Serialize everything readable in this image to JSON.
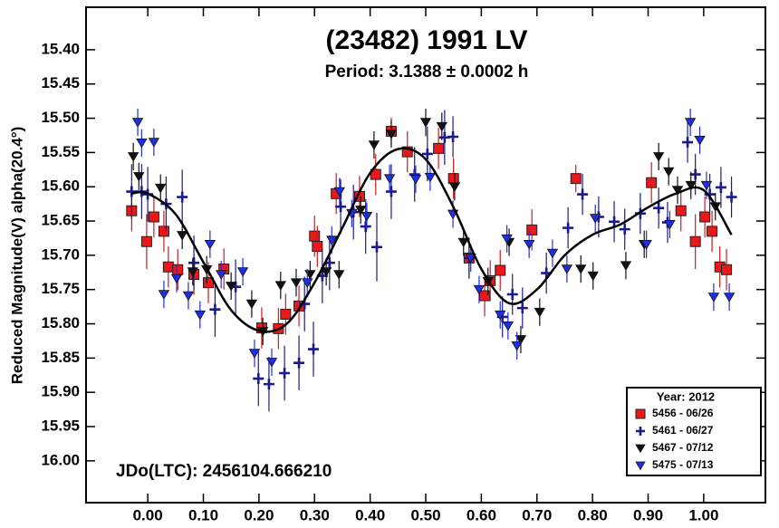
{
  "chart_data": {
    "type": "scatter",
    "title": "(23482) 1991 LV",
    "subtitle": "Period: 3.1388 ± 0.0002 h",
    "y_label": "Reduced Magnitude(V) alpha(20.4°)",
    "annotation": "JDo(LTC): 2456104.666210",
    "legend_title": "Year: 2012",
    "legend_position": "lower-right",
    "xlim": [
      -0.111,
      1.111
    ],
    "ylim": [
      15.338,
      16.061
    ],
    "y_inverted": true,
    "xticks": [
      {
        "value": 0,
        "label": "0.00"
      },
      {
        "value": 0.1,
        "label": "0.10"
      },
      {
        "value": 0.2,
        "label": "0.20"
      },
      {
        "value": 0.3,
        "label": "0.30"
      },
      {
        "value": 0.4,
        "label": "0.40"
      },
      {
        "value": 0.5,
        "label": "0.50"
      },
      {
        "value": 0.6,
        "label": "0.60"
      },
      {
        "value": 0.7,
        "label": "0.70"
      },
      {
        "value": 0.8,
        "label": "0.80"
      },
      {
        "value": 0.9,
        "label": "0.90"
      },
      {
        "value": 1,
        "label": "1.00"
      }
    ],
    "yticks": [
      {
        "value": 15.4,
        "label": "15.40"
      },
      {
        "value": 15.45,
        "label": "15.45"
      },
      {
        "value": 15.5,
        "label": "15.50"
      },
      {
        "value": 15.55,
        "label": "15.55"
      },
      {
        "value": 15.6,
        "label": "15.60"
      },
      {
        "value": 15.65,
        "label": "15.65"
      },
      {
        "value": 15.7,
        "label": "15.70"
      },
      {
        "value": 15.75,
        "label": "15.75"
      },
      {
        "value": 15.8,
        "label": "15.80"
      },
      {
        "value": 15.85,
        "label": "15.85"
      },
      {
        "value": 15.9,
        "label": "15.90"
      },
      {
        "value": 15.95,
        "label": "15.95"
      },
      {
        "value": 16,
        "label": "16.00"
      }
    ],
    "series": [
      {
        "name": "5456 - 06/26",
        "marker": "square",
        "color": "#e8181b",
        "error_color": "#d01a1a",
        "x": [
          -0.029,
          0.011,
          -0.002,
          0.029,
          0.037,
          0.054,
          0.083,
          0.109,
          0.137,
          0.205,
          0.235,
          0.248,
          0.272,
          0.3,
          0.305,
          0.339,
          0.381,
          0.41,
          0.438,
          0.467,
          0.523,
          0.55,
          0.578,
          0.606,
          0.616,
          0.634,
          0.691,
          0.77,
          0.906,
          0.959,
          0.985,
          1.002,
          1.015,
          1.029,
          1.041
        ],
        "values": [
          15.635,
          15.644,
          15.68,
          15.665,
          15.717,
          15.721,
          15.728,
          15.74,
          15.72,
          15.806,
          15.807,
          15.786,
          15.774,
          15.672,
          15.687,
          15.61,
          15.614,
          15.582,
          15.519,
          15.549,
          15.544,
          15.588,
          15.704,
          15.759,
          15.737,
          15.722,
          15.663,
          15.588,
          15.594,
          15.635,
          15.68,
          15.644,
          15.665,
          15.717,
          15.721
        ],
        "errors": [
          0.03,
          0.03,
          0.04,
          0.03,
          0.03,
          0.03,
          0.03,
          0.03,
          0.03,
          0.03,
          0.03,
          0.03,
          0.03,
          0.03,
          0.03,
          0.03,
          0.03,
          0.03,
          0.02,
          0.03,
          0.03,
          0.03,
          0.03,
          0.03,
          0.03,
          0.03,
          0.03,
          0.02,
          0.03,
          0.03,
          0.04,
          0.03,
          0.03,
          0.03,
          0.03
        ]
      },
      {
        "name": "5461 - 06/27",
        "marker": "plus",
        "color": "#1b1b8a",
        "error_color": "#1b1b8a",
        "x": [
          -0.029,
          -0.011,
          0,
          0.033,
          0.062,
          0.083,
          0.121,
          0.158,
          0.199,
          0.218,
          0.246,
          0.272,
          0.298,
          0.282,
          0.314,
          0.327,
          0.347,
          0.37,
          0.392,
          0.412,
          0.438,
          0.48,
          0.503,
          0.534,
          0.549,
          0.578,
          0.638,
          0.656,
          0.674,
          0.717,
          0.756,
          0.782,
          0.811,
          0.839,
          0.858,
          0.886,
          0.919,
          0.935,
          0.971,
          0.985,
          1.011,
          1.031,
          1.05
        ],
        "values": [
          15.607,
          15.607,
          15.611,
          15.625,
          15.615,
          15.711,
          15.779,
          15.746,
          15.88,
          15.888,
          15.872,
          15.857,
          15.837,
          15.771,
          15.73,
          15.711,
          15.629,
          15.637,
          15.658,
          15.688,
          15.607,
          15.582,
          15.552,
          15.528,
          15.527,
          15.704,
          15.79,
          15.757,
          15.777,
          15.726,
          15.66,
          15.611,
          15.644,
          15.651,
          15.662,
          15.639,
          15.631,
          15.652,
          15.535,
          15.582,
          15.611,
          15.601,
          15.615
        ],
        "errors": [
          0.04,
          0.04,
          0.04,
          0.04,
          0.04,
          0.04,
          0.04,
          0.04,
          0.04,
          0.04,
          0.04,
          0.04,
          0.04,
          0.04,
          0.04,
          0.04,
          0.04,
          0.04,
          0.04,
          0.05,
          0.04,
          0.04,
          0.04,
          0.04,
          0.03,
          0.03,
          0.03,
          0.03,
          0.03,
          0.03,
          0.03,
          0.03,
          0.03,
          0.03,
          0.03,
          0.03,
          0.03,
          0.03,
          0.03,
          0.03,
          0.03,
          0.03,
          0.03
        ]
      },
      {
        "name": "5467 - 07/12",
        "marker": "triangle",
        "color": "#111111",
        "error_color": "#111111",
        "x": [
          -0.026,
          -0.016,
          0.023,
          0.062,
          0.081,
          0.106,
          0.15,
          0.187,
          0.207,
          0.239,
          0.267,
          0.292,
          0.321,
          0.344,
          0.383,
          0.407,
          0.438,
          0.5,
          0.529,
          0.552,
          0.568,
          0.612,
          0.65,
          0.671,
          0.705,
          0.779,
          0.801,
          0.86,
          0.893,
          0.919,
          0.937,
          0.953,
          0.977,
          1.021
        ],
        "values": [
          15.556,
          15.585,
          15.602,
          15.671,
          15.724,
          15.721,
          15.745,
          15.771,
          15.811,
          15.744,
          15.74,
          15.728,
          15.724,
          15.728,
          15.634,
          15.539,
          15.523,
          15.506,
          15.512,
          15.6,
          15.681,
          15.738,
          15.681,
          15.823,
          15.783,
          15.72,
          15.73,
          15.715,
          15.684,
          15.556,
          15.578,
          15.605,
          15.598,
          15.629
        ],
        "errors": [
          0.02,
          0.02,
          0.02,
          0.02,
          0.02,
          0.02,
          0.02,
          0.02,
          0.02,
          0.02,
          0.02,
          0.02,
          0.02,
          0.02,
          0.02,
          0.02,
          0.02,
          0.02,
          0.02,
          0.02,
          0.02,
          0.02,
          0.02,
          0.02,
          0.02,
          0.02,
          0.02,
          0.02,
          0.02,
          0.02,
          0.02,
          0.02,
          0.02,
          0.02
        ]
      },
      {
        "name": "5475 - 07/13",
        "marker": "triangle",
        "color": "#1f2fe0",
        "error_color": "#1f2fe0",
        "x": [
          -0.018,
          -0.011,
          0.011,
          0.029,
          0.052,
          0.073,
          0.094,
          0.112,
          0.132,
          0.171,
          0.192,
          0.223,
          0.287,
          0.331,
          0.345,
          0.367,
          0.394,
          0.435,
          0.482,
          0.508,
          0.549,
          0.581,
          0.596,
          0.634,
          0.648,
          0.664,
          0.646,
          0.686,
          0.728,
          0.754,
          0.805,
          0.897,
          0.939,
          0.976,
          0.993,
          1.005,
          1.018,
          1.046
        ],
        "values": [
          15.506,
          15.536,
          15.535,
          15.757,
          15.734,
          15.759,
          15.787,
          15.684,
          15.728,
          15.724,
          15.843,
          15.856,
          15.74,
          15.678,
          15.607,
          15.639,
          15.643,
          15.588,
          15.589,
          15.586,
          15.64,
          15.704,
          15.75,
          15.787,
          15.803,
          15.832,
          15.676,
          15.684,
          15.697,
          15.72,
          15.646,
          15.684,
          15.655,
          15.506,
          15.532,
          15.598,
          15.761,
          15.761
        ],
        "errors": [
          0.02,
          0.02,
          0.02,
          0.02,
          0.02,
          0.02,
          0.02,
          0.02,
          0.02,
          0.02,
          0.02,
          0.02,
          0.02,
          0.02,
          0.02,
          0.02,
          0.02,
          0.02,
          0.02,
          0.02,
          0.02,
          0.02,
          0.02,
          0.02,
          0.02,
          0.02,
          0.02,
          0.02,
          0.02,
          0.02,
          0.02,
          0.02,
          0.02,
          0.02,
          0.02,
          0.02,
          0.02,
          0.02
        ]
      }
    ],
    "fit": {
      "color": "#000000",
      "x": [
        -0.03,
        0,
        0.05,
        0.1,
        0.15,
        0.2,
        0.25,
        0.3,
        0.35,
        0.4,
        0.45,
        0.5,
        0.55,
        0.6,
        0.65,
        0.7,
        0.75,
        0.8,
        0.85,
        0.9,
        0.95,
        1,
        1.05
      ],
      "values": [
        15.61,
        15.61,
        15.64,
        15.71,
        15.78,
        15.81,
        15.8,
        15.74,
        15.66,
        15.58,
        15.545,
        15.56,
        15.63,
        15.72,
        15.77,
        15.75,
        15.7,
        15.67,
        15.655,
        15.63,
        15.61,
        15.605,
        15.67
      ]
    }
  }
}
